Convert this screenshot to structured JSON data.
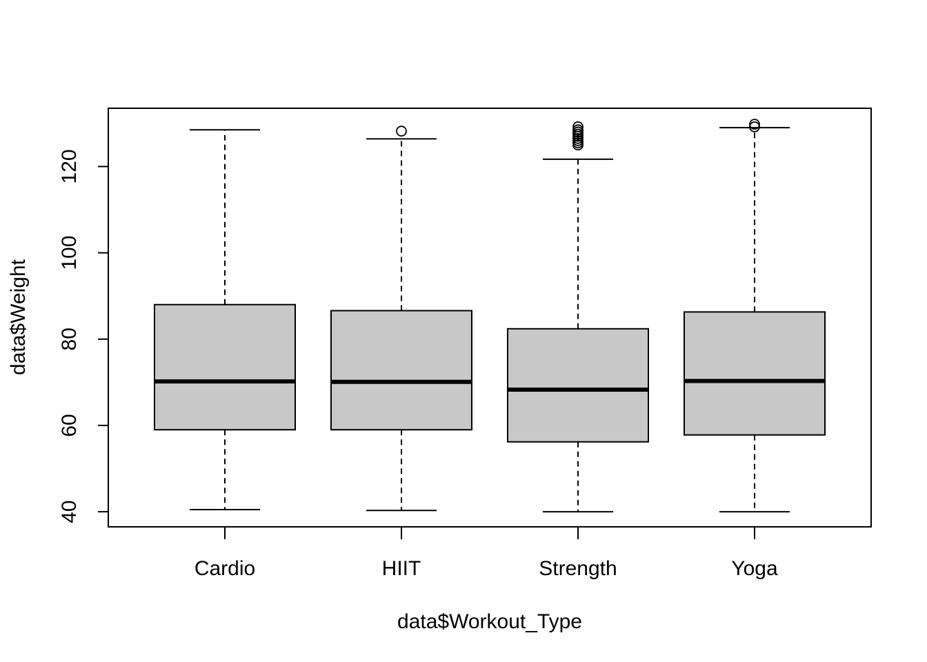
{
  "chart_data": {
    "type": "boxplot",
    "title": "",
    "xlabel": "data$Workout_Type",
    "ylabel": "data$Weight",
    "categories": [
      "Cardio",
      "HIIT",
      "Strength",
      "Yoga"
    ],
    "ylim": [
      36.5,
      133.5
    ],
    "yticks": [
      40,
      60,
      80,
      100,
      120
    ],
    "ytick_labels": [
      "40",
      "60",
      "80",
      "100",
      "120"
    ],
    "box_fill": "#c8c8c8",
    "grid": false,
    "legend": "none",
    "boxes": [
      {
        "category": "Cardio",
        "lower_whisker": 40.5,
        "q1": 59.0,
        "median": 70.2,
        "q3": 88.0,
        "upper_whisker": 128.5,
        "outliers": []
      },
      {
        "category": "HIIT",
        "lower_whisker": 40.3,
        "q1": 59.0,
        "median": 70.1,
        "q3": 86.6,
        "upper_whisker": 126.4,
        "outliers": [
          128.2
        ]
      },
      {
        "category": "Strength",
        "lower_whisker": 40.0,
        "q1": 56.2,
        "median": 68.3,
        "q3": 82.4,
        "upper_whisker": 121.7,
        "outliers": [
          125.0,
          125.5,
          126.0,
          126.5,
          127.0,
          127.5,
          128.0,
          128.5,
          129.2
        ]
      },
      {
        "category": "Yoga",
        "lower_whisker": 40.0,
        "q1": 57.8,
        "median": 70.3,
        "q3": 86.3,
        "upper_whisker": 129.0,
        "outliers": [
          129.2,
          129.8
        ]
      }
    ]
  }
}
